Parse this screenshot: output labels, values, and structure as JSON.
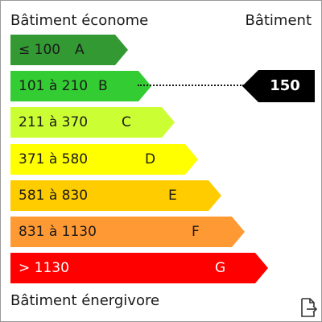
{
  "header": {
    "title_left": "Bâtiment économe",
    "title_right": "Bâtiment"
  },
  "footer": {
    "label": "Bâtiment énergivore"
  },
  "bands": [
    {
      "range": "≤ 100",
      "letter": "A",
      "color": "#339933",
      "text_color": "#1a1a1a"
    },
    {
      "range": "101 à 210",
      "letter": "B",
      "color": "#33cc33",
      "text_color": "#1a1a1a"
    },
    {
      "range": "211 à 370",
      "letter": "C",
      "color": "#ccff33",
      "text_color": "#1a1a1a"
    },
    {
      "range": "371 à 580",
      "letter": "D",
      "color": "#ffff00",
      "text_color": "#1a1a1a"
    },
    {
      "range": "581 à 830",
      "letter": "E",
      "color": "#ffcc00",
      "text_color": "#1a1a1a"
    },
    {
      "range": "831 à 1130",
      "letter": "F",
      "color": "#ff9933",
      "text_color": "#1a1a1a"
    },
    {
      "range": "> 1130",
      "letter": "G",
      "color": "#ff0000",
      "text_color": "#ffffff"
    }
  ],
  "indicator": {
    "value": "150",
    "band_letter": "B",
    "color": "#000000"
  },
  "export_icon": "file-export-icon"
}
